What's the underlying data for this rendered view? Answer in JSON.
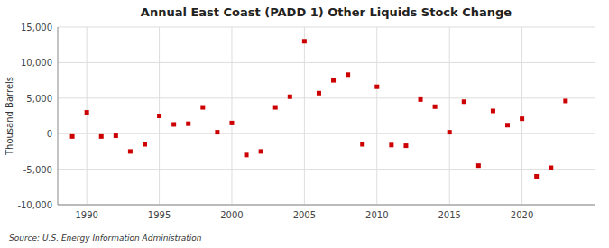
{
  "chart_data": {
    "type": "scatter",
    "title": "Annual East Coast (PADD 1) Other Liquids Stock Change",
    "ylabel": "Thousand Barrels",
    "annotations": [
      "Source: U.S. Energy Information Administration"
    ],
    "x": [
      1989,
      1990,
      1991,
      1992,
      1993,
      1994,
      1995,
      1996,
      1997,
      1998,
      1999,
      2000,
      2001,
      2002,
      2003,
      2004,
      2005,
      2006,
      2007,
      2008,
      2009,
      2010,
      2011,
      2012,
      2013,
      2014,
      2015,
      2016,
      2017,
      2018,
      2019,
      2020,
      2021,
      2022,
      2023
    ],
    "values": [
      -400,
      3000,
      -400,
      -300,
      -2500,
      -1500,
      2500,
      1300,
      1400,
      3700,
      200,
      1500,
      -3000,
      -2500,
      3700,
      5200,
      13000,
      5700,
      7500,
      8300,
      -1500,
      6600,
      -1600,
      -1700,
      4800,
      3800,
      200,
      4500,
      -4500,
      3200,
      1200,
      2100,
      -6000,
      -4800,
      4600
    ],
    "color": "#cc0000",
    "marker": "square",
    "grid": true,
    "xlim": [
      1988,
      2025
    ],
    "xticks": [
      1990,
      1995,
      2000,
      2005,
      2010,
      2015,
      2020
    ],
    "ylim": [
      -10000,
      15000
    ],
    "yticks": [
      {
        "value": -10000,
        "label": "-10,000"
      },
      {
        "value": -5000,
        "label": "-5,000"
      },
      0,
      {
        "value": 5000,
        "label": "5,000"
      },
      {
        "value": 10000,
        "label": "10,000"
      },
      {
        "value": 15000,
        "label": "15,000"
      }
    ]
  }
}
